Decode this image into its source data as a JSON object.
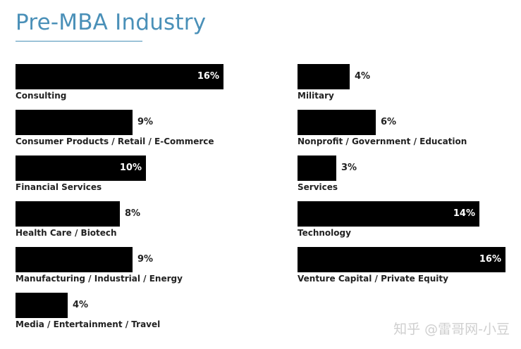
{
  "chart_data": {
    "type": "bar",
    "orientation": "horizontal",
    "title": "Pre-MBA Industry",
    "value_suffix": "%",
    "xlim": [
      0,
      16
    ],
    "grid": false,
    "legend": "none",
    "bar_color": "#000000",
    "title_color": "#4a90b8",
    "columns": [
      {
        "categories": [
          "Consulting",
          "Consumer Products / Retail / E-Commerce",
          "Financial Services",
          "Health Care / Biotech",
          "Manufacturing / Industrial / Energy",
          "Media / Entertainment / Travel"
        ],
        "values": [
          16,
          9,
          10,
          8,
          9,
          4
        ]
      },
      {
        "categories": [
          "Military",
          "Nonprofit / Government / Education",
          "Services",
          "Technology",
          "Venture Capital / Private Equity"
        ],
        "values": [
          4,
          6,
          3,
          14,
          16
        ]
      }
    ]
  },
  "watermark": "知乎 @雷哥网-小豆"
}
